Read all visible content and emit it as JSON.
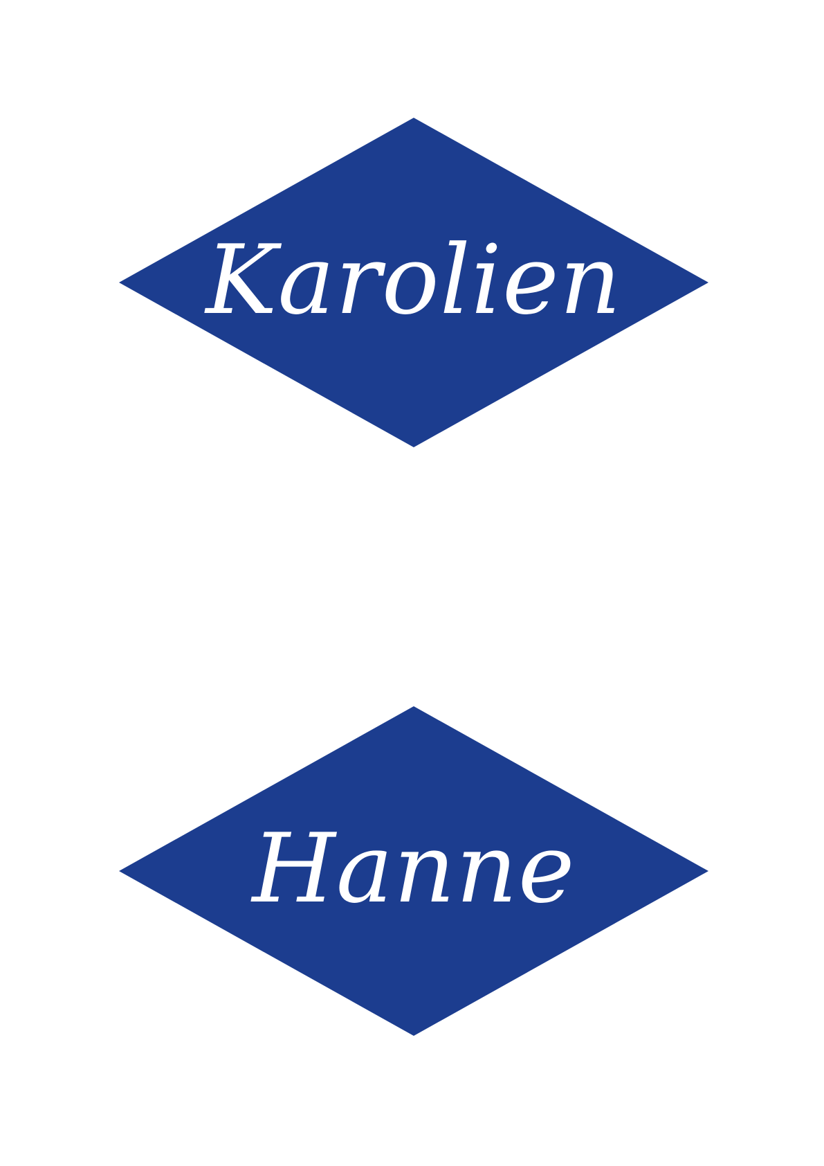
{
  "colors": {
    "background": "#ffffff",
    "diamond": "#1c3d8f",
    "text": "#ffffff"
  },
  "cards": [
    {
      "name": "Karolien"
    },
    {
      "name": "Hanne"
    }
  ]
}
